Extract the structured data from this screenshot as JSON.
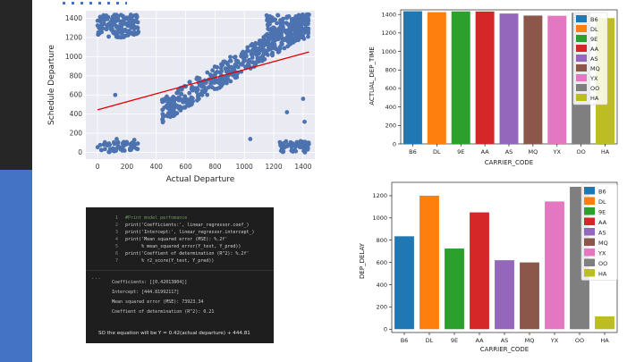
{
  "scatter": {
    "xlabel": "Actual Departure",
    "ylabel": "Schedule Departure",
    "xticks": [
      0,
      200,
      400,
      600,
      800,
      1000,
      1200,
      1400
    ],
    "yticks": [
      0,
      200,
      400,
      600,
      800,
      1000,
      1200,
      1400
    ],
    "colors": {
      "points": "#4c72b0",
      "line": "#e00000",
      "bg": "#eaeaf2"
    }
  },
  "code": {
    "lines": [
      {
        "num": "1",
        "text": "#Print model perfomance"
      },
      {
        "num": "2",
        "text": "print('Coefficients:', linear_regressor.coef_)"
      },
      {
        "num": "3",
        "text": "print('Intercept:', linear_regressor.intercept_)"
      },
      {
        "num": "4",
        "text": "print('Mean squared error (MSE): %.2f'"
      },
      {
        "num": "5",
        "text": "      % mean_squared_error(Y_test, Y_pred))"
      },
      {
        "num": "6",
        "text": "print('Coeffient of determination (R^2): %.2f'"
      },
      {
        "num": "7",
        "text": "      % r2_score(Y_test, Y_pred))"
      }
    ],
    "output": [
      "Coefficients: [[0.42013804]]",
      "Intercept: [444.81992117]",
      "Mean squared error (MSE): 73923.34",
      "Coeffient of determination (R^2): 0.21"
    ],
    "ellipsis": "...",
    "summary": "SO the equation will be Y = 0.42(actual departure) + 444.81"
  },
  "chart_data": [
    {
      "type": "scatter",
      "xlabel": "Actual Departure",
      "ylabel": "Schedule Departure",
      "xlim": [
        -80,
        1480
      ],
      "ylim": [
        -70,
        1480
      ],
      "regression": {
        "slope": 0.42,
        "intercept": 444.81,
        "x_range": [
          0,
          1440
        ]
      }
    },
    {
      "type": "bar",
      "xlabel": "CARRIER_CODE",
      "ylabel": "ACTUAL_DEP_TIME",
      "categories": [
        "B6",
        "DL",
        "9E",
        "AA",
        "AS",
        "MQ",
        "YX",
        "OO",
        "HA"
      ],
      "values": [
        1435,
        1425,
        1433,
        1432,
        1410,
        1388,
        1386,
        1418,
        1360
      ],
      "colors": [
        "#1f77b4",
        "#ff7f0e",
        "#2ca02c",
        "#d62728",
        "#9467bd",
        "#8c564b",
        "#e377c2",
        "#7f7f7f",
        "#bcbd22"
      ],
      "ylim": [
        0,
        1450
      ],
      "yticks": [
        0,
        200,
        400,
        600,
        800,
        1000,
        1200,
        1400
      ],
      "legend": "right"
    },
    {
      "type": "bar",
      "xlabel": "CARRIER_CODE",
      "ylabel": "DEP_DELAY",
      "categories": [
        "B6",
        "DL",
        "9E",
        "AA",
        "AS",
        "MQ",
        "YX",
        "OO",
        "HA"
      ],
      "values": [
        835,
        1200,
        725,
        1050,
        620,
        600,
        1148,
        1280,
        115
      ],
      "colors": [
        "#1f77b4",
        "#ff7f0e",
        "#2ca02c",
        "#d62728",
        "#9467bd",
        "#8c564b",
        "#e377c2",
        "#7f7f7f",
        "#bcbd22"
      ],
      "ylim": [
        -30,
        1320
      ],
      "yticks": [
        0,
        200,
        400,
        600,
        800,
        1000,
        1200
      ],
      "legend": "right"
    }
  ]
}
